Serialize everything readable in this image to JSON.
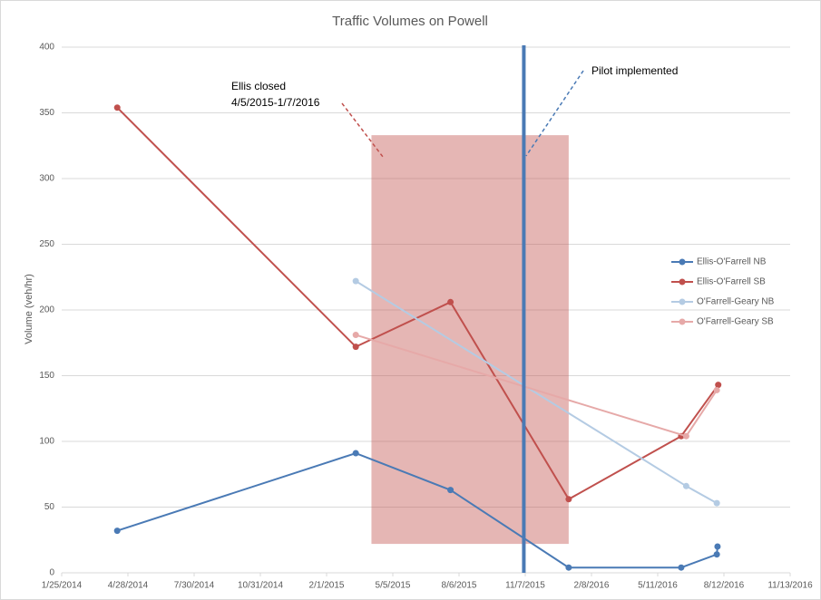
{
  "chart_data": {
    "type": "line",
    "title": "Traffic Volumes on Powell",
    "y_label": "Volume (veh/hr)",
    "xlim": [
      "1/25/2014",
      "11/13/2016"
    ],
    "xticks": [
      "1/25/2014",
      "4/28/2014",
      "7/30/2014",
      "10/31/2014",
      "2/1/2015",
      "5/5/2015",
      "8/6/2015",
      "11/7/2015",
      "2/8/2016",
      "5/11/2016",
      "8/12/2016",
      "11/13/2016"
    ],
    "ylim": [
      0,
      400
    ],
    "yticks": [
      0,
      50,
      100,
      150,
      200,
      250,
      300,
      350,
      400
    ],
    "grid": true,
    "series": [
      {
        "name": "Ellis-O'Farrell NB",
        "color": "#4a7ab5",
        "x": [
          "4/13/2014",
          "3/14/2015",
          "7/25/2015",
          "1/7/2016",
          "6/13/2016",
          "8/2/2016",
          "8/3/2016"
        ],
        "values": [
          32,
          91,
          63,
          4,
          4,
          14,
          20
        ]
      },
      {
        "name": "Ellis-O'Farrell SB",
        "color": "#c0504d",
        "x": [
          "4/13/2014",
          "3/14/2015",
          "7/25/2015",
          "1/7/2016",
          "6/13/2016",
          "8/4/2016"
        ],
        "values": [
          354,
          172,
          206,
          56,
          104,
          143
        ]
      },
      {
        "name": "O'Farrell-Geary NB",
        "color": "#b4cbe3",
        "x": [
          "3/14/2015",
          "6/20/2016",
          "8/2/2016"
        ],
        "values": [
          222,
          66,
          53
        ]
      },
      {
        "name": "O'Farrell-Geary SB",
        "color": "#e6a9a8",
        "x": [
          "3/14/2015",
          "6/20/2016",
          "8/2/2016"
        ],
        "values": [
          181,
          104,
          139
        ]
      }
    ],
    "highlight": {
      "x": [
        "4/5/2015",
        "1/7/2016"
      ],
      "y": [
        22,
        333
      ],
      "color": "#c0504d"
    },
    "vline": {
      "x": "11/5/2015",
      "color": "#4a7ab5"
    },
    "annotations": [
      {
        "text": [
          "Ellis closed",
          "4/5/2015-1/7/2016"
        ]
      },
      {
        "text": "Pilot implemented"
      }
    ],
    "legend": "right"
  }
}
